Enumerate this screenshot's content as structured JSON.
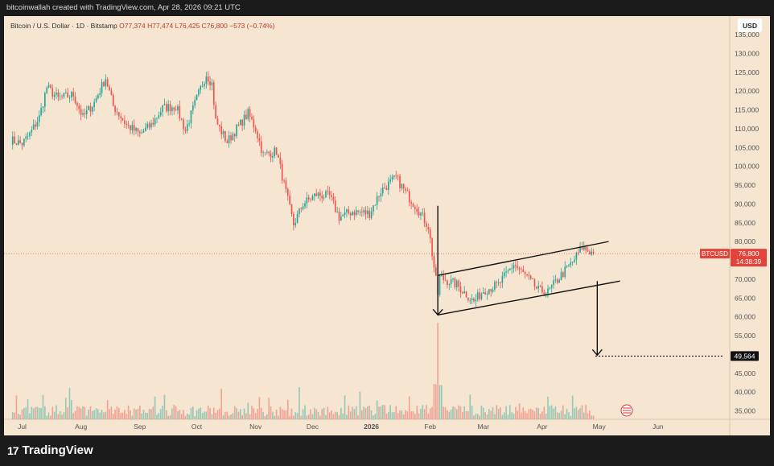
{
  "header": {
    "credit": "bitcoinwallah created with TradingView.com, Apr 28, 2026 09:21 UTC"
  },
  "symbol_line": {
    "name": "Bitcoin / U.S. Dollar · 1D · Bitstamp",
    "ohlc": "O77,374 H77,474 L76,425 C76,800 −573 (−0.74%)"
  },
  "currency": "USD",
  "footer": {
    "logo_mark": "17",
    "brand": "TradingView"
  },
  "labels": {
    "price_tag_name": "BTCUSD",
    "price_tag_value": "76,800",
    "price_tag_timer": "14:38:39",
    "target_value": "49,564"
  },
  "colors": {
    "up": "#26a69a",
    "down": "#ef5350",
    "background": "#f6e5d0",
    "last_price": "#e0443a"
  },
  "chart_data": {
    "type": "candlestick",
    "y_ticks": [
      "135,000",
      "130,000",
      "125,000",
      "120,000",
      "115,000",
      "110,000",
      "105,000",
      "100,000",
      "95,000",
      "90,000",
      "85,000",
      "80,000",
      "75,000",
      "70,000",
      "65,000",
      "60,000",
      "55,000",
      "50,000",
      "45,000",
      "40,000",
      "35,000"
    ],
    "x_ticks": [
      "Jul",
      "Aug",
      "Sep",
      "Oct",
      "Nov",
      "Dec",
      "2026",
      "Feb",
      "Mar",
      "Apr",
      "May",
      "Jun"
    ],
    "ylim": [
      34000,
      136000
    ],
    "last_price": 76800,
    "target_price": 49564,
    "price_path": [
      [
        "2025-06-25",
        107000
      ],
      [
        "2025-07-01",
        106000
      ],
      [
        "2025-07-05",
        108500
      ],
      [
        "2025-07-10",
        113000
      ],
      [
        "2025-07-14",
        121000
      ],
      [
        "2025-07-20",
        118000
      ],
      [
        "2025-07-28",
        119000
      ],
      [
        "2025-08-02",
        113000
      ],
      [
        "2025-08-08",
        117000
      ],
      [
        "2025-08-14",
        123500
      ],
      [
        "2025-08-18",
        116000
      ],
      [
        "2025-08-25",
        111000
      ],
      [
        "2025-09-01",
        108500
      ],
      [
        "2025-09-07",
        111000
      ],
      [
        "2025-09-13",
        115500
      ],
      [
        "2025-09-20",
        116000
      ],
      [
        "2025-09-25",
        109500
      ],
      [
        "2025-10-01",
        118000
      ],
      [
        "2025-10-06",
        124500
      ],
      [
        "2025-10-09",
        122000
      ],
      [
        "2025-10-11",
        112000
      ],
      [
        "2025-10-17",
        106500
      ],
      [
        "2025-10-22",
        110000
      ],
      [
        "2025-10-28",
        114000
      ],
      [
        "2025-11-01",
        110000
      ],
      [
        "2025-11-05",
        103000
      ],
      [
        "2025-11-12",
        104000
      ],
      [
        "2025-11-17",
        93000
      ],
      [
        "2025-11-21",
        84500
      ],
      [
        "2025-11-26",
        90000
      ],
      [
        "2025-12-03",
        92500
      ],
      [
        "2025-12-10",
        92000
      ],
      [
        "2025-12-15",
        86500
      ],
      [
        "2025-12-22",
        88000
      ],
      [
        "2025-12-31",
        87500
      ],
      [
        "2026-01-06",
        93500
      ],
      [
        "2026-01-14",
        97000
      ],
      [
        "2026-01-19",
        93000
      ],
      [
        "2026-01-25",
        89000
      ],
      [
        "2026-01-31",
        84000
      ],
      [
        "2026-02-05",
        66000
      ],
      [
        "2026-02-06",
        70500
      ],
      [
        "2026-02-15",
        68500
      ],
      [
        "2026-02-24",
        64000
      ],
      [
        "2026-03-01",
        67000
      ],
      [
        "2026-03-09",
        68500
      ],
      [
        "2026-03-17",
        74000
      ],
      [
        "2026-03-23",
        71000
      ],
      [
        "2026-03-30",
        67000
      ],
      [
        "2026-04-04",
        66500
      ],
      [
        "2026-04-10",
        70500
      ],
      [
        "2026-04-17",
        74500
      ],
      [
        "2026-04-22",
        78500
      ],
      [
        "2026-04-28",
        76800
      ]
    ],
    "volume_spike": [
      "2026-02-05",
      30
    ],
    "annotations": {
      "channel_upper": [
        [
          "2026-02-05",
          71000
        ],
        [
          "2026-05-06",
          80000
        ]
      ],
      "channel_lower": [
        [
          "2026-02-05",
          60500
        ],
        [
          "2026-05-12",
          69500
        ]
      ],
      "flagpole_arrow": [
        [
          "2026-02-05",
          89500
        ],
        [
          "2026-02-05",
          60500
        ]
      ],
      "projection_arrow": [
        [
          "2026-04-30",
          69500
        ],
        [
          "2026-04-30",
          49800
        ]
      ],
      "target_line": [
        [
          "2026-04-29",
          49564
        ],
        [
          "2026-07-05",
          49564
        ]
      ]
    }
  }
}
